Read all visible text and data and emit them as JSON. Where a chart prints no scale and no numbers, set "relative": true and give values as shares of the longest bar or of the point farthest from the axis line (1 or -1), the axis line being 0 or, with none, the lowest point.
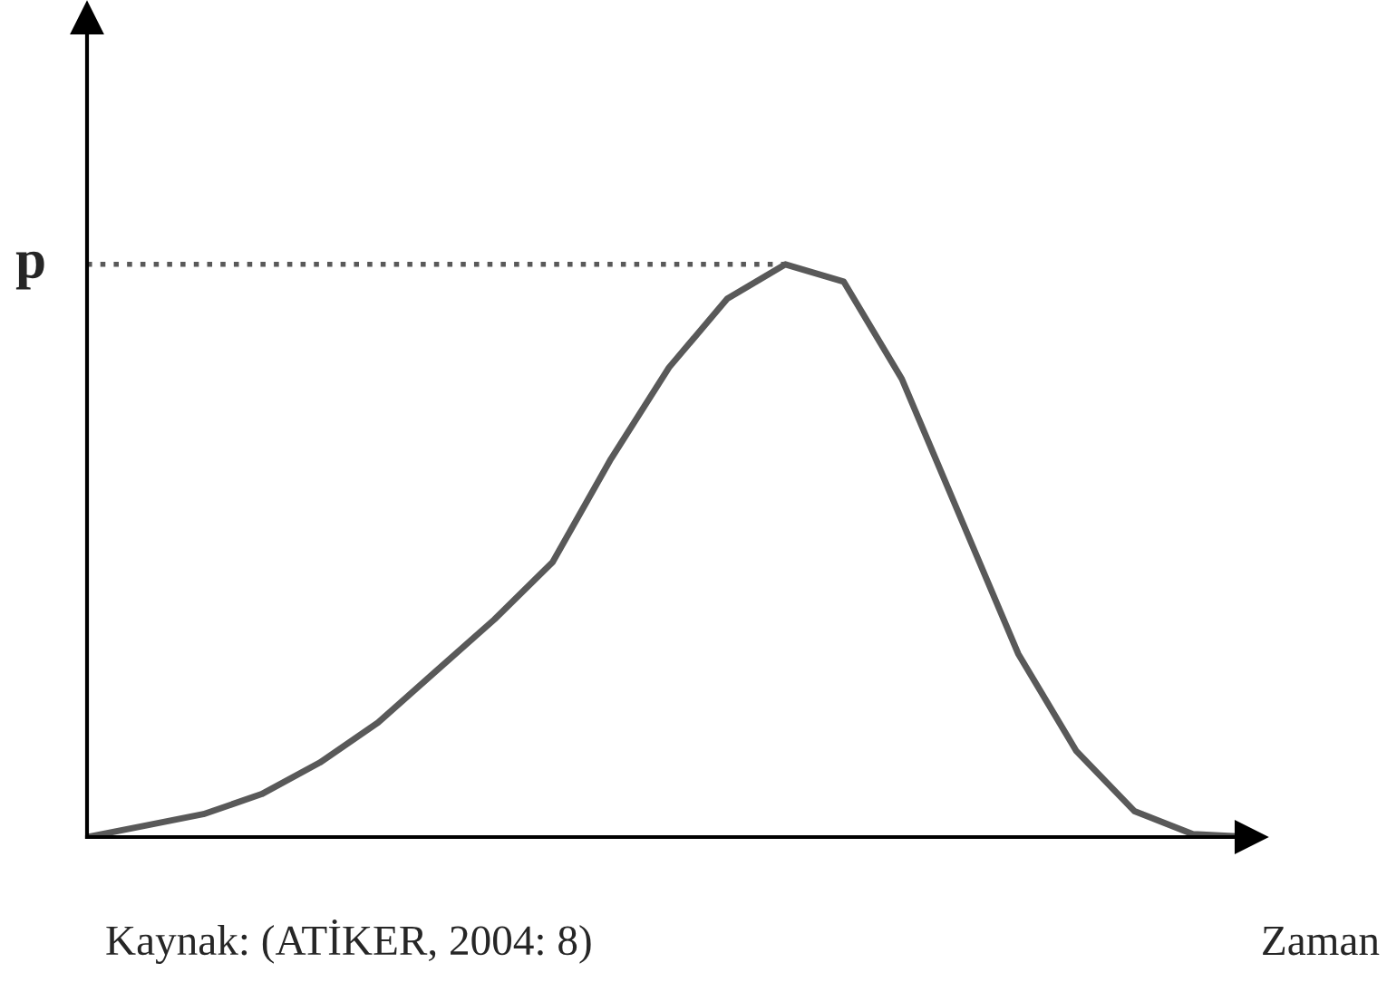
{
  "chart_data": {
    "type": "line",
    "relative": true,
    "xlabel": "Zaman",
    "categories": [
      null,
      null,
      null,
      null,
      null,
      null,
      null,
      null,
      null,
      null,
      null,
      null,
      null,
      null,
      null,
      null,
      null,
      null,
      null,
      null,
      null
    ],
    "series": [
      {
        "color": "#595959",
        "values": [
          0,
          0.02,
          0.04,
          0.075,
          0.13,
          0.2,
          0.29,
          0.38,
          0.48,
          0.66,
          0.82,
          0.94,
          1.0,
          0.97,
          0.8,
          0.56,
          0.32,
          0.15,
          0.045,
          0.005,
          0
        ]
      }
    ],
    "ref_lines": [
      {
        "axis": "y",
        "value": 1,
        "label": "p",
        "color": "#595959",
        "line_style": "dotted"
      }
    ],
    "annotations": [
      "Kaynak: (ATİKER, 2004: 8)"
    ],
    "legend": false,
    "marker": "none",
    "line_style": "solid"
  }
}
